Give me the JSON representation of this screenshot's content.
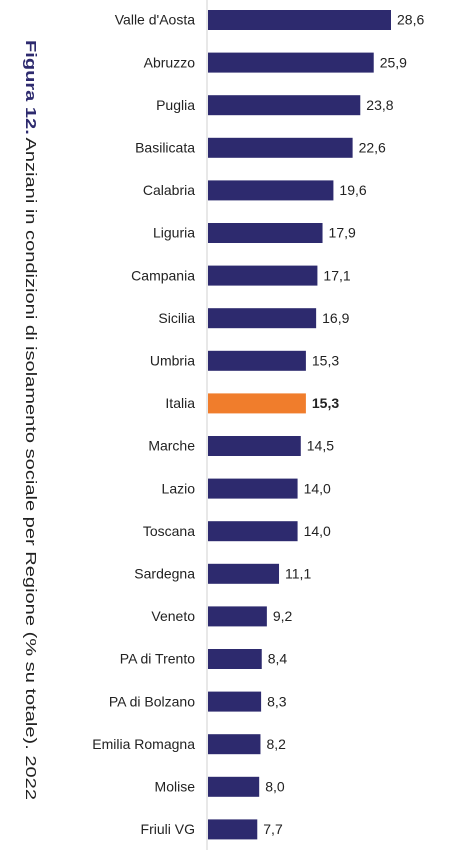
{
  "chart_data": {
    "type": "bar",
    "orientation": "horizontal",
    "figure_label": "Figura 12.",
    "title": "Anziani in condizioni di isolamento sociale per Regione (% su totale). 2022",
    "categories": [
      "Valle d'Aosta",
      "Abruzzo",
      "Puglia",
      "Basilicata",
      "Calabria",
      "Liguria",
      "Campania",
      "Sicilia",
      "Umbria",
      "Italia",
      "Marche",
      "Lazio",
      "Toscana",
      "Sardegna",
      "Veneto",
      "PA di Trento",
      "PA di Bolzano",
      "Emilia Romagna",
      "Molise",
      "Friuli VG"
    ],
    "values": [
      28.6,
      25.9,
      23.8,
      22.6,
      19.6,
      17.9,
      17.1,
      16.9,
      15.3,
      15.3,
      14.5,
      14.0,
      14.0,
      11.1,
      9.2,
      8.4,
      8.3,
      8.2,
      8.0,
      7.7
    ],
    "value_labels": [
      "28,6",
      "25,9",
      "23,8",
      "22,6",
      "19,6",
      "17,9",
      "17,1",
      "16,9",
      "15,3",
      "15,3",
      "14,5",
      "14,0",
      "14,0",
      "11,1",
      "9,2",
      "8,4",
      "8,3",
      "8,2",
      "8,0",
      "7,7"
    ],
    "colors": [
      "#2d2a6e",
      "#2d2a6e",
      "#2d2a6e",
      "#2d2a6e",
      "#2d2a6e",
      "#2d2a6e",
      "#2d2a6e",
      "#2d2a6e",
      "#2d2a6e",
      "#f07d2c",
      "#2d2a6e",
      "#2d2a6e",
      "#2d2a6e",
      "#2d2a6e",
      "#2d2a6e",
      "#2d2a6e",
      "#2d2a6e",
      "#2d2a6e",
      "#2d2a6e",
      "#2d2a6e"
    ]
  }
}
